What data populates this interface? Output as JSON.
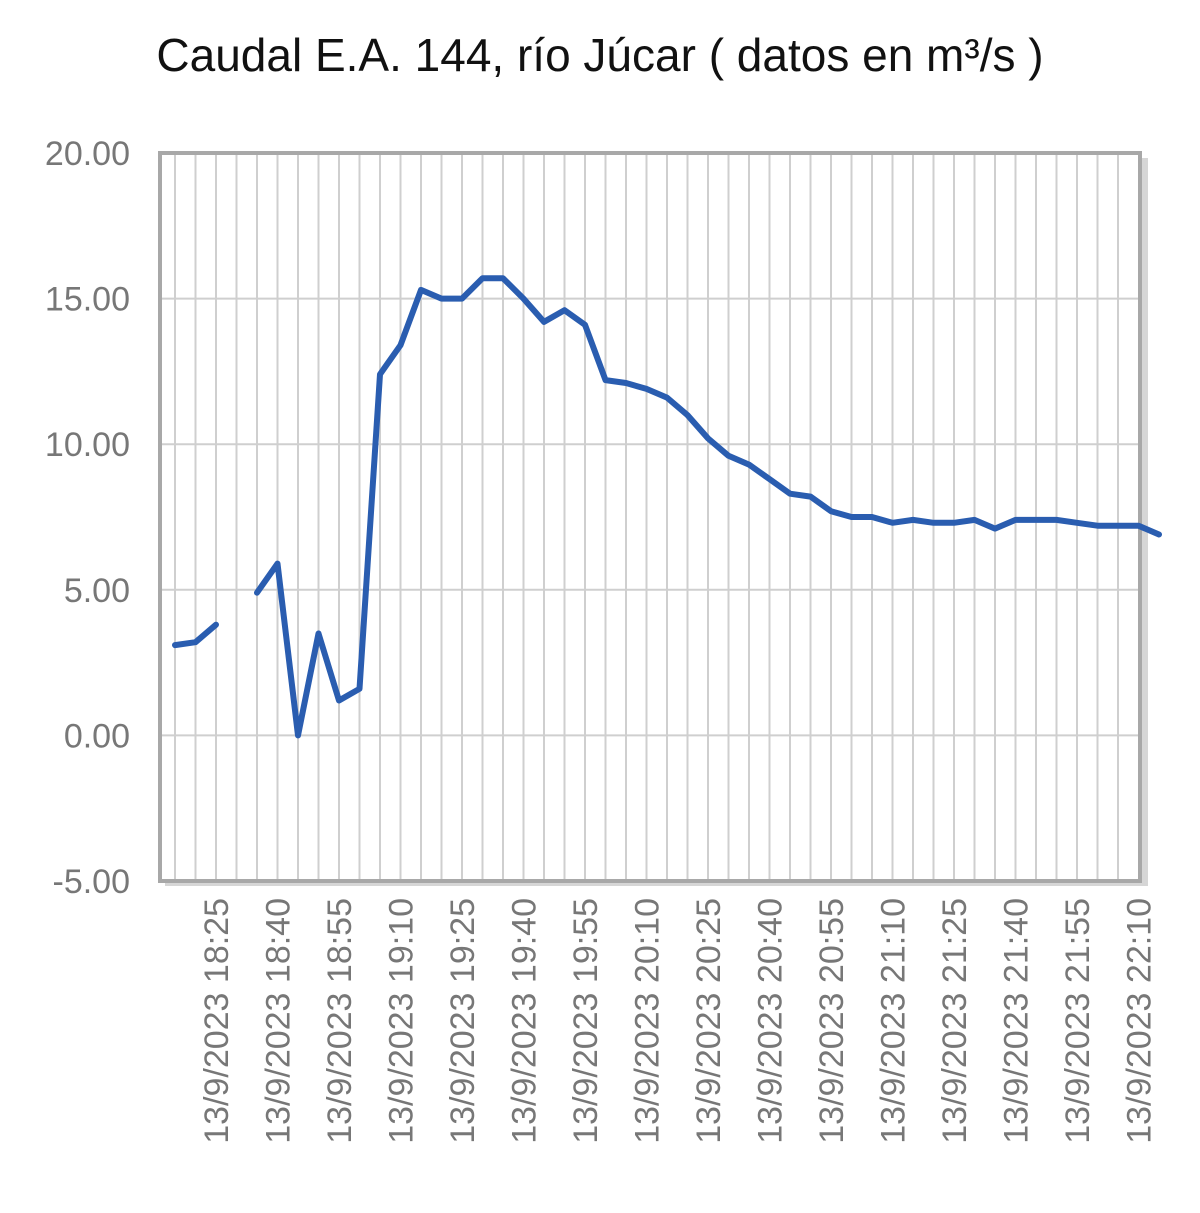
{
  "chart_data": {
    "type": "line",
    "title": "Caudal E.A. 144, río Júcar ( datos en m³/s )",
    "xlabel": "",
    "ylabel": "",
    "ylim": [
      -5,
      20
    ],
    "yticks": [
      "20.00",
      "15.00",
      "10.00",
      "5.00",
      "0.00",
      "-5.00"
    ],
    "xtick_labels": [
      "13/9/2023 18:25",
      "13/9/2023 18:40",
      "13/9/2023 18:55",
      "13/9/2023 19:10",
      "13/9/2023 19:25",
      "13/9/2023 19:40",
      "13/9/2023 19:55",
      "13/9/2023 20:10",
      "13/9/2023 20:25",
      "13/9/2023 20:40",
      "13/9/2023 20:55",
      "13/9/2023 21:10",
      "13/9/2023 21:25",
      "13/9/2023 21:40",
      "13/9/2023 21:55",
      "13/9/2023 22:10"
    ],
    "grid": true,
    "legend": "none",
    "line_color": "#2a5db0",
    "series": [
      {
        "x": [
          "18:15",
          "18:20",
          "18:25",
          "18:30",
          "18:35",
          "18:40",
          "18:45",
          "18:50",
          "18:55",
          "19:00",
          "19:05",
          "19:10",
          "19:15",
          "19:20",
          "19:25",
          "19:30",
          "19:35",
          "19:40",
          "19:45",
          "19:50",
          "19:55",
          "20:00",
          "20:05",
          "20:10",
          "20:15",
          "20:20",
          "20:25",
          "20:30",
          "20:35",
          "20:40",
          "20:45",
          "20:50",
          "20:55",
          "21:00",
          "21:05",
          "21:10",
          "21:15",
          "21:20",
          "21:25",
          "21:30",
          "21:35",
          "21:40",
          "21:45",
          "21:50",
          "21:55",
          "22:00",
          "22:05",
          "22:10",
          "22:15"
        ],
        "values": [
          3.1,
          3.2,
          3.8,
          null,
          4.9,
          5.9,
          0.0,
          3.5,
          1.2,
          1.6,
          12.4,
          13.4,
          15.3,
          15.0,
          15.0,
          15.7,
          15.7,
          15.0,
          14.2,
          14.6,
          14.1,
          12.2,
          12.1,
          11.9,
          11.6,
          11.0,
          10.2,
          9.6,
          9.3,
          8.8,
          8.3,
          8.2,
          7.7,
          7.5,
          7.5,
          7.3,
          7.4,
          7.3,
          7.3,
          7.4,
          7.1,
          7.4,
          7.4,
          7.4,
          7.3,
          7.2,
          7.2,
          7.2,
          6.9
        ]
      }
    ]
  }
}
